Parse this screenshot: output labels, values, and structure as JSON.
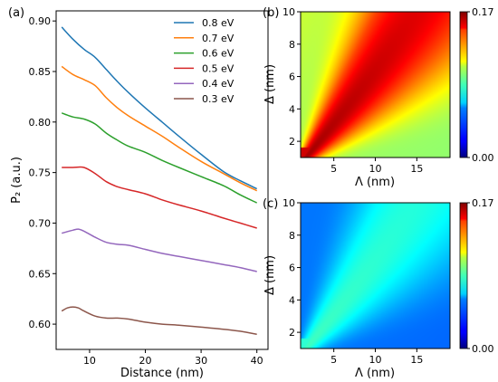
{
  "chart_data": [
    {
      "panel": "(a)",
      "type": "line",
      "xlabel": "Distance (nm)",
      "ylabel": "P₂ (a.u.)",
      "xlim": [
        4,
        42
      ],
      "ylim": [
        0.575,
        0.91
      ],
      "xticks": [
        10,
        20,
        30,
        40
      ],
      "yticks": [
        0.6,
        0.65,
        0.7,
        0.75,
        0.8,
        0.85,
        0.9
      ],
      "ytick_labels": [
        "0.60",
        "0.65",
        "0.70",
        "0.75",
        "0.80",
        "0.85",
        "0.90"
      ],
      "legend_position": "top-right",
      "grid": false,
      "series": [
        {
          "name": "0.8 eV",
          "color": "#1f77b4",
          "x": [
            5,
            7,
            9,
            11,
            13,
            15,
            17,
            20,
            23,
            26,
            30,
            34,
            37,
            40
          ],
          "y": [
            0.894,
            0.882,
            0.872,
            0.864,
            0.852,
            0.84,
            0.829,
            0.814,
            0.8,
            0.786,
            0.768,
            0.751,
            0.742,
            0.734
          ]
        },
        {
          "name": "0.7 eV",
          "color": "#ff7f0e",
          "x": [
            5,
            7,
            9,
            11,
            13,
            15,
            17,
            20,
            23,
            26,
            30,
            34,
            37,
            40
          ],
          "y": [
            0.855,
            0.847,
            0.842,
            0.836,
            0.824,
            0.814,
            0.806,
            0.796,
            0.786,
            0.775,
            0.761,
            0.749,
            0.74,
            0.732
          ]
        },
        {
          "name": "0.6 eV",
          "color": "#2ca02c",
          "x": [
            5,
            7,
            9,
            11,
            13,
            15,
            17,
            20,
            23,
            26,
            30,
            34,
            37,
            40
          ],
          "y": [
            0.809,
            0.805,
            0.803,
            0.798,
            0.789,
            0.782,
            0.776,
            0.77,
            0.762,
            0.755,
            0.746,
            0.737,
            0.728,
            0.72
          ]
        },
        {
          "name": "0.5 eV",
          "color": "#d62728",
          "x": [
            5,
            7,
            9,
            11,
            13,
            15,
            17,
            20,
            23,
            26,
            30,
            34,
            37,
            40
          ],
          "y": [
            0.755,
            0.755,
            0.755,
            0.749,
            0.741,
            0.736,
            0.733,
            0.729,
            0.723,
            0.718,
            0.712,
            0.705,
            0.7,
            0.695
          ]
        },
        {
          "name": "0.4 eV",
          "color": "#9467bd",
          "x": [
            5,
            7,
            8,
            9,
            11,
            13,
            15,
            17,
            20,
            23,
            26,
            30,
            34,
            37,
            40
          ],
          "y": [
            0.69,
            0.693,
            0.694,
            0.692,
            0.686,
            0.681,
            0.679,
            0.678,
            0.674,
            0.67,
            0.667,
            0.663,
            0.659,
            0.656,
            0.652
          ]
        },
        {
          "name": "0.3 eV",
          "color": "#8c564b",
          "x": [
            5,
            6,
            7,
            8,
            9,
            11,
            13,
            15,
            17,
            20,
            23,
            26,
            30,
            34,
            37,
            40
          ],
          "y": [
            0.613,
            0.616,
            0.617,
            0.616,
            0.613,
            0.608,
            0.606,
            0.606,
            0.605,
            0.602,
            0.6,
            0.599,
            0.597,
            0.595,
            0.593,
            0.59
          ]
        }
      ]
    },
    {
      "panel": "(b)",
      "type": "heatmap",
      "xlabel": "Λ (nm)",
      "ylabel": "Δ (nm)",
      "xlim": [
        1,
        19
      ],
      "ylim": [
        1,
        10
      ],
      "xticks": [
        5,
        10,
        15
      ],
      "yticks": [
        2,
        4,
        6,
        8,
        10
      ],
      "colormap": "jet",
      "colorbar_ticks": [
        "0.00",
        "0.17"
      ],
      "clim": [
        0.0,
        0.17
      ],
      "description_values": {
        "ridge_max": 0.165,
        "corner_top_left": 0.11,
        "corner_bottom_right": 0.085
      }
    },
    {
      "panel": "(c)",
      "type": "heatmap",
      "xlabel": "Λ (nm)",
      "ylabel": "Δ (nm)",
      "xlim": [
        1,
        19
      ],
      "ylim": [
        1,
        10
      ],
      "xticks": [
        5,
        10,
        15
      ],
      "yticks": [
        2,
        4,
        6,
        8,
        10
      ],
      "colormap": "jet",
      "colorbar_ticks": [
        "0.00",
        "0.17"
      ],
      "clim": [
        0.0,
        0.17
      ],
      "description_values": {
        "ridge_max": 0.075,
        "corner_top_left": 0.04,
        "corner_bottom_right": 0.035
      }
    }
  ]
}
